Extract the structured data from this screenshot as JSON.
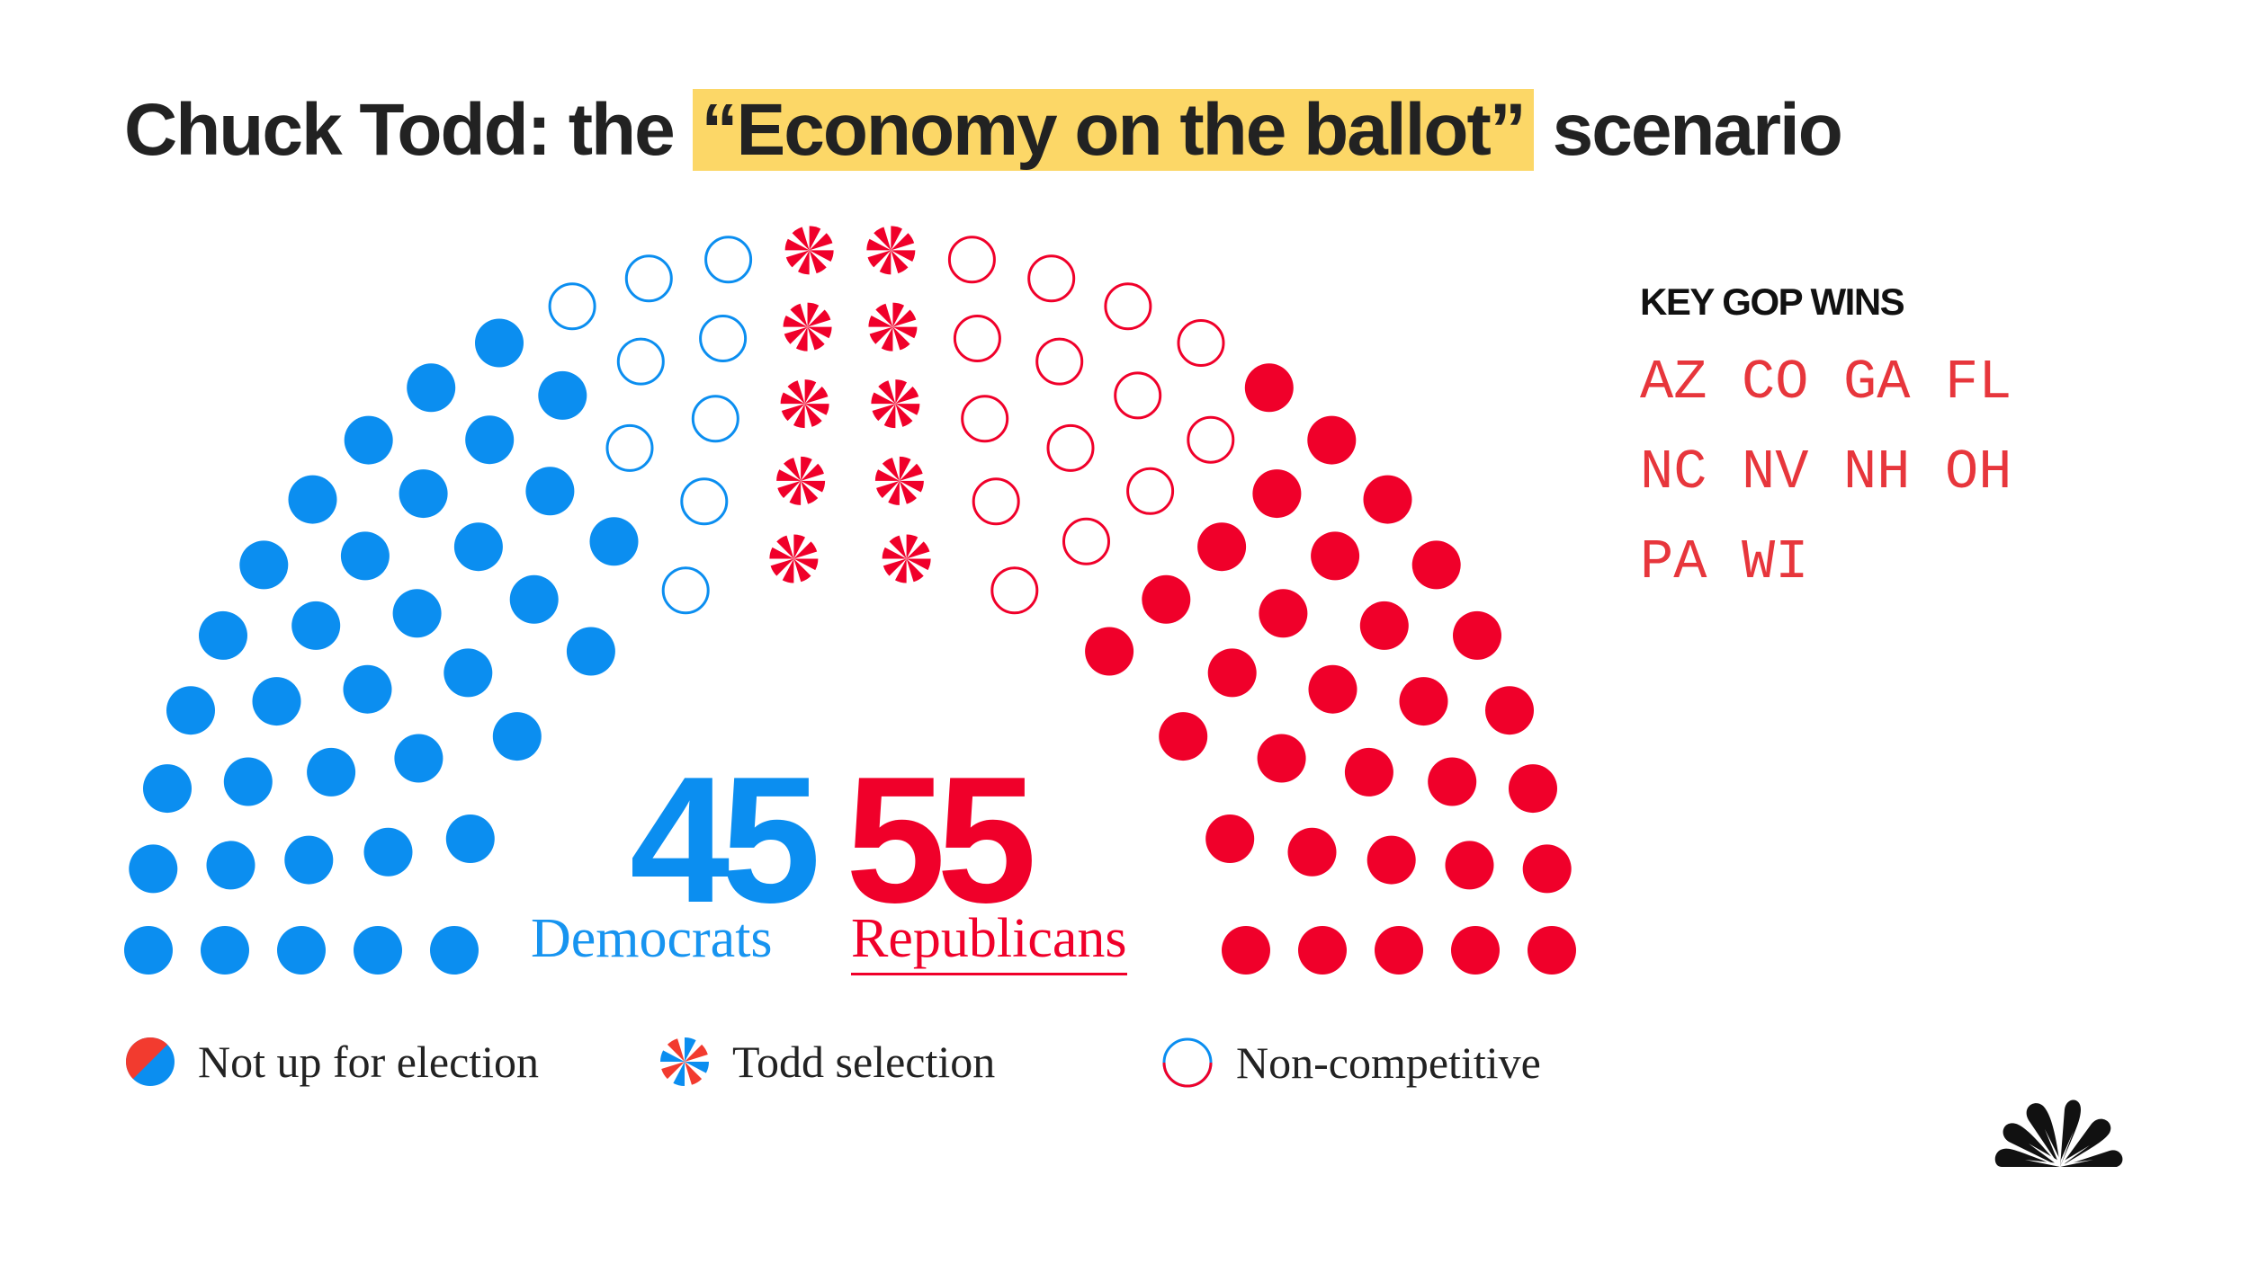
{
  "title": {
    "prefix": "Chuck Todd: the",
    "highlight": "“Economy on the ballot”",
    "suffix": "scenario"
  },
  "colors": {
    "democrat": "#0b8ef0",
    "republican": "#f0002a",
    "highlight": "#fcd767",
    "state_text": "#e7363c"
  },
  "chart_data": {
    "type": "parliament",
    "total_seats": 100,
    "series": [
      {
        "name": "Democrats",
        "value": 45
      },
      {
        "name": "Republicans",
        "value": 55
      }
    ],
    "seat_categories": {
      "democrat_not_up": 36,
      "democrat_non_competitive": 9,
      "republican_todd_selection": 10,
      "republican_non_competitive": 14,
      "republican_not_up": 31
    }
  },
  "tally": {
    "dem_count": "45",
    "dem_label": "Democrats",
    "rep_count": "55",
    "rep_label": "Republicans"
  },
  "legend": {
    "not_up": "Not up for election",
    "todd": "Todd selection",
    "noncomp": "Non-competitive"
  },
  "key_gop_wins": {
    "title": "KEY GOP WINS",
    "states": [
      "AZ",
      "CO",
      "GA",
      "FL",
      "NC",
      "NV",
      "NH",
      "OH",
      "PA",
      "WI"
    ]
  },
  "logo_icon": "nbc-peacock-icon"
}
